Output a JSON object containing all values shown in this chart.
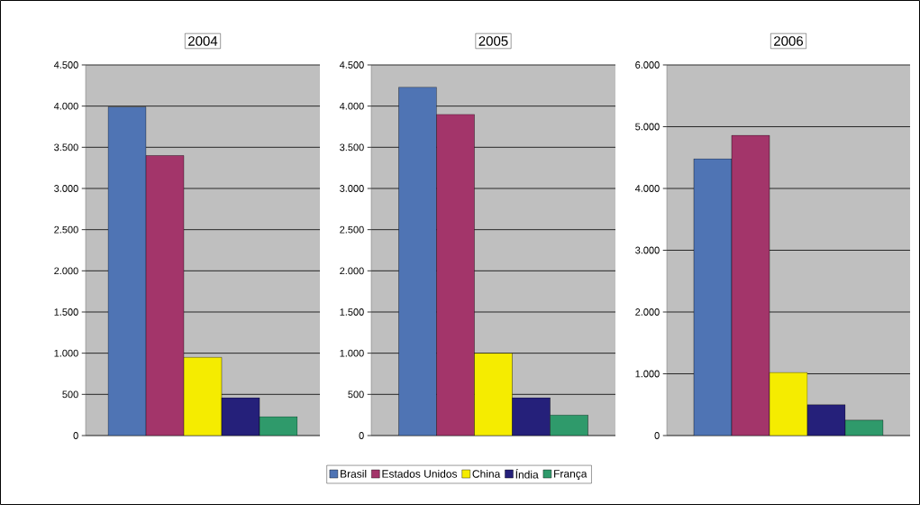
{
  "chart_data": [
    {
      "type": "bar",
      "title": "2004",
      "categories": [
        null
      ],
      "ylim": [
        0,
        4500
      ],
      "yticks": [
        0,
        500,
        {
          "value": 1000,
          "label": "1.000"
        },
        {
          "value": 1500,
          "label": "1.500"
        },
        {
          "value": 2000,
          "label": "2.000"
        },
        {
          "value": 2500,
          "label": "2.500"
        },
        {
          "value": 3000,
          "label": "3.000"
        },
        {
          "value": 3500,
          "label": "3.500"
        },
        {
          "value": 4000,
          "label": "4.000"
        },
        {
          "value": 4500,
          "label": "4.500"
        }
      ],
      "grid": "y",
      "tick_labels": "y",
      "series": [
        {
          "color": "#4f74b4",
          "values": [
            3990
          ]
        },
        {
          "color": "#a3356a",
          "values": [
            3400
          ]
        },
        {
          "color": "#f5ec00",
          "values": [
            950
          ]
        },
        {
          "color": "#25207a",
          "values": [
            460
          ]
        },
        {
          "color": "#2f9a6b",
          "values": [
            230
          ]
        }
      ]
    },
    {
      "type": "bar",
      "title": "2005",
      "categories": [
        null
      ],
      "ylim": [
        0,
        4500
      ],
      "yticks": [
        0,
        500,
        {
          "value": 1000,
          "label": "1.000"
        },
        {
          "value": 1500,
          "label": "1.500"
        },
        {
          "value": 2000,
          "label": "2.000"
        },
        {
          "value": 2500,
          "label": "2.500"
        },
        {
          "value": 3000,
          "label": "3.000"
        },
        {
          "value": 3500,
          "label": "3.500"
        },
        {
          "value": 4000,
          "label": "4.000"
        },
        {
          "value": 4500,
          "label": "4.500"
        }
      ],
      "grid": "y",
      "tick_labels": "y",
      "legend": "bottom",
      "series": [
        {
          "name": "Brasil",
          "color": "#4f74b4",
          "values": [
            4230
          ]
        },
        {
          "name": "Estados Unidos",
          "color": "#a3356a",
          "values": [
            3900
          ]
        },
        {
          "name": "China",
          "color": "#f5ec00",
          "values": [
            1000
          ]
        },
        {
          "name": "Índia",
          "color": "#25207a",
          "values": [
            460
          ]
        },
        {
          "name": "França",
          "color": "#2f9a6b",
          "values": [
            250
          ]
        }
      ]
    },
    {
      "type": "bar",
      "title": "2006",
      "categories": [
        null
      ],
      "ylim": [
        0,
        6000
      ],
      "yticks": [
        0,
        {
          "value": 1000,
          "label": "1.000"
        },
        {
          "value": 2000,
          "label": "2.000"
        },
        {
          "value": 3000,
          "label": "3.000"
        },
        {
          "value": 4000,
          "label": "4.000"
        },
        {
          "value": 5000,
          "label": "5.000"
        },
        {
          "value": 6000,
          "label": "6.000"
        }
      ],
      "grid": "y",
      "tick_labels": "y",
      "series": [
        {
          "color": "#4f74b4",
          "values": [
            4480
          ]
        },
        {
          "color": "#a3356a",
          "values": [
            4860
          ]
        },
        {
          "color": "#f5ec00",
          "values": [
            1020
          ]
        },
        {
          "color": "#25207a",
          "values": [
            500
          ]
        },
        {
          "color": "#2f9a6b",
          "values": [
            250
          ]
        }
      ]
    }
  ]
}
